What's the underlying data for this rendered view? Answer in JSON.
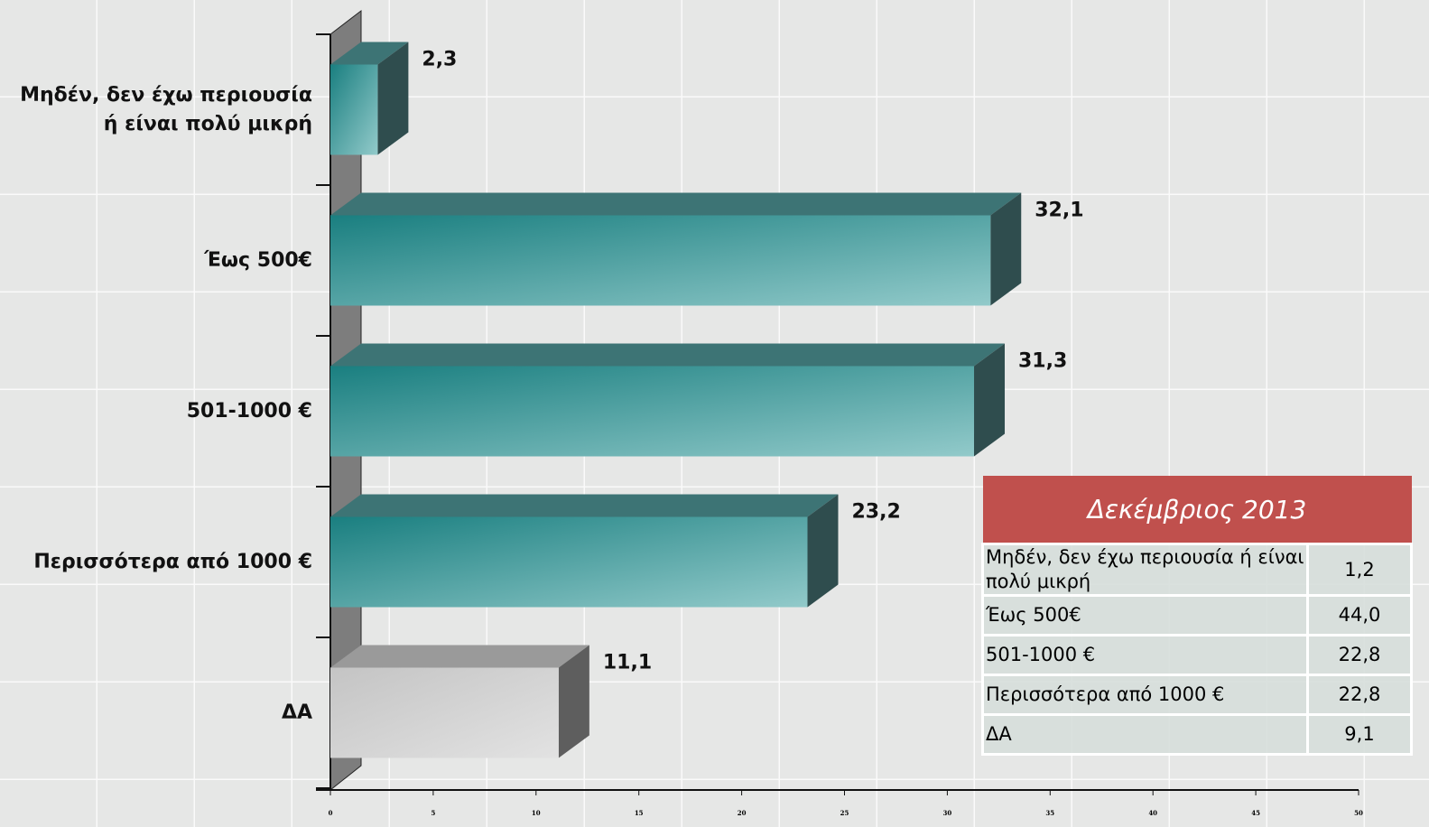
{
  "chart_data": {
    "type": "bar3d",
    "categories": [
      "Μηδέν, δεν έχω περιουσία ή είναι πολύ μικρή",
      "Έως 500€",
      "501-1000  €",
      "Περισσότερα από 1000 €",
      "ΔΑ"
    ],
    "values": [
      2.3,
      32.1,
      31.3,
      23.2,
      11.1
    ],
    "value_labels": [
      "2,3",
      "32,1",
      "31,3",
      "23,2",
      "11,1"
    ],
    "colors": [
      "#1f8585",
      "#1f8585",
      "#1f8585",
      "#1f8585",
      "#bdbdbd"
    ],
    "xlim": [
      0,
      50
    ],
    "xticks": [
      0,
      5,
      10,
      15,
      20,
      25,
      30,
      35,
      40,
      45,
      50
    ]
  },
  "table": {
    "title": "Δεκέμβριος 2013",
    "rows": [
      [
        "Μηδέν, δεν έχω περιουσία ή είναι πολύ μικρή",
        "1,2"
      ],
      [
        "Έως 500€",
        "44,0"
      ],
      [
        "501-1000  €",
        "22,8"
      ],
      [
        "Περισσότερα από 1000 €",
        "22,8"
      ],
      [
        "ΔΑ",
        "9,1"
      ]
    ]
  }
}
